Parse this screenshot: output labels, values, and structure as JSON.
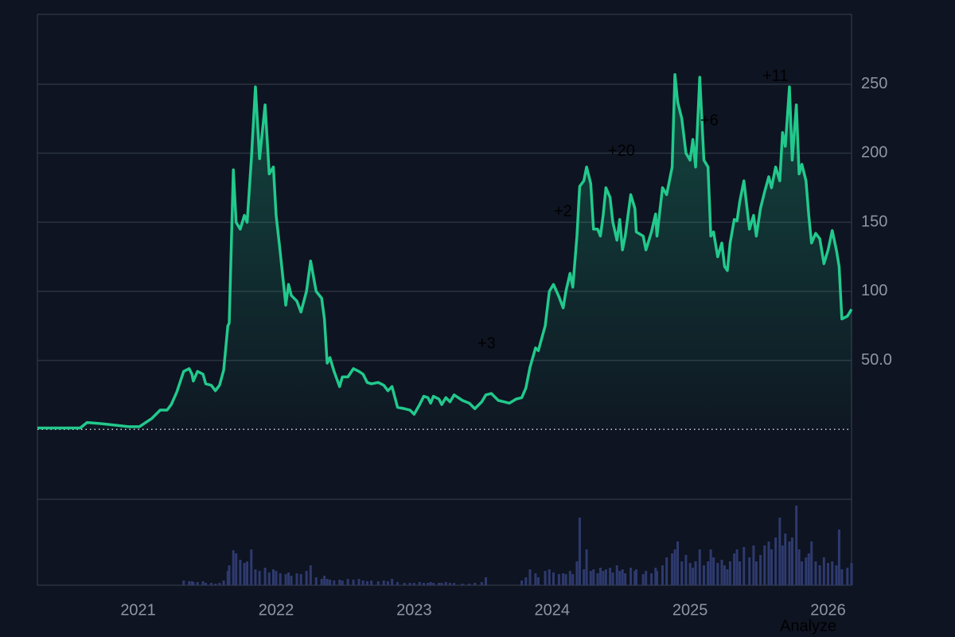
{
  "chart_data": {
    "type": "line",
    "color": "#22c98c",
    "grid": true,
    "xlim": [
      2020.27,
      2026.17
    ],
    "xticks": [
      2021,
      2022,
      2023,
      2024,
      2025,
      2026
    ],
    "ylim": [
      -50,
      300
    ],
    "yticks": [
      {
        "value": 50,
        "label": "50.0"
      },
      100,
      150,
      200,
      250
    ],
    "vlim": [
      0,
      108
    ],
    "volume_color": "#2e3a6e",
    "annotations": [
      "+3",
      "+2",
      "+20",
      "+6",
      "+11"
    ],
    "x": [
      2020.27,
      2020.58,
      2020.63,
      2020.75,
      2020.93,
      2021.01,
      2021.1,
      2021.16,
      2021.21,
      2021.24,
      2021.28,
      2021.33,
      2021.37,
      2021.39,
      2021.4,
      2021.43,
      2021.47,
      2021.49,
      2021.53,
      2021.56,
      2021.59,
      2021.62,
      2021.65,
      2021.66,
      2021.69,
      2021.71,
      2021.74,
      2021.77,
      2021.79,
      2021.82,
      2021.85,
      2021.88,
      2021.92,
      2021.95,
      2021.98,
      2022.0,
      2022.03,
      2022.07,
      2022.09,
      2022.11,
      2022.15,
      2022.18,
      2022.22,
      2022.25,
      2022.29,
      2022.33,
      2022.35,
      2022.37,
      2022.39,
      2022.42,
      2022.46,
      2022.48,
      2022.52,
      2022.56,
      2022.6,
      2022.63,
      2022.66,
      2022.69,
      2022.74,
      2022.78,
      2022.81,
      2022.84,
      2022.88,
      2022.93,
      2022.97,
      2023.0,
      2023.04,
      2023.07,
      2023.1,
      2023.12,
      2023.14,
      2023.18,
      2023.2,
      2023.23,
      2023.26,
      2023.29,
      2023.35,
      2023.4,
      2023.44,
      2023.49,
      2023.52,
      2023.56,
      2023.61,
      2023.65,
      2023.69,
      2023.74,
      2023.78,
      2023.81,
      2023.84,
      2023.88,
      2023.9,
      2023.95,
      2023.98,
      2024.01,
      2024.05,
      2024.08,
      2024.1,
      2024.13,
      2024.15,
      2024.18,
      2024.2,
      2024.23,
      2024.25,
      2024.28,
      2024.3,
      2024.33,
      2024.35,
      2024.37,
      2024.39,
      2024.42,
      2024.44,
      2024.47,
      2024.49,
      2024.51,
      2024.53,
      2024.57,
      2024.6,
      2024.61,
      2024.66,
      2024.68,
      2024.72,
      2024.75,
      2024.76,
      2024.8,
      2024.83,
      2024.87,
      2024.89,
      2024.91,
      2024.94,
      2024.97,
      2025.0,
      2025.02,
      2025.04,
      2025.07,
      2025.1,
      2025.13,
      2025.15,
      2025.17,
      2025.2,
      2025.23,
      2025.25,
      2025.27,
      2025.29,
      2025.32,
      2025.34,
      2025.36,
      2025.39,
      2025.43,
      2025.46,
      2025.48,
      2025.51,
      2025.54,
      2025.57,
      2025.59,
      2025.62,
      2025.65,
      2025.67,
      2025.69,
      2025.72,
      2025.74,
      2025.77,
      2025.79,
      2025.81,
      2025.84,
      2025.86,
      2025.88,
      2025.91,
      2025.94,
      2025.97,
      2026.0,
      2026.03,
      2026.06,
      2026.08,
      2026.1,
      2026.14,
      2026.17
    ],
    "values": [
      1,
      1,
      5,
      4,
      2,
      2,
      8,
      14,
      14,
      18,
      27,
      42,
      44,
      40,
      35,
      42,
      40,
      33,
      32,
      28,
      32,
      43,
      75,
      77,
      188,
      150,
      145,
      155,
      150,
      195,
      248,
      196,
      235,
      185,
      190,
      155,
      128,
      90,
      105,
      97,
      93,
      85,
      100,
      122,
      100,
      95,
      80,
      48,
      52,
      42,
      31,
      38,
      38,
      44,
      42,
      40,
      34,
      33,
      34,
      32,
      28,
      31,
      16,
      15,
      14,
      11,
      18,
      24,
      23,
      19,
      24,
      22,
      18,
      23,
      20,
      25,
      21,
      19,
      15,
      20,
      25,
      26,
      21,
      20,
      19,
      22,
      23,
      30,
      45,
      59,
      57,
      75,
      100,
      105,
      96,
      88,
      100,
      113,
      103,
      140,
      176,
      180,
      190,
      178,
      145,
      145,
      140,
      155,
      175,
      168,
      150,
      137,
      152,
      130,
      140,
      170,
      160,
      143,
      140,
      130,
      143,
      156,
      140,
      175,
      170,
      190,
      257,
      237,
      225,
      200,
      195,
      210,
      190,
      255,
      195,
      190,
      140,
      143,
      125,
      135,
      118,
      115,
      135,
      152,
      151,
      165,
      180,
      145,
      155,
      140,
      160,
      172,
      183,
      175,
      190,
      180,
      215,
      205,
      248,
      195,
      235,
      185,
      192,
      180,
      155,
      135,
      142,
      138,
      120,
      130,
      144,
      130,
      118,
      80,
      82,
      87
    ],
    "volume": [
      0,
      0,
      0,
      0,
      0,
      0,
      0,
      0,
      0,
      0,
      0,
      6,
      5,
      5,
      4,
      4,
      5,
      3,
      3,
      2,
      3,
      6,
      18,
      25,
      44,
      40,
      32,
      28,
      30,
      45,
      20,
      18,
      22,
      16,
      20,
      18,
      15,
      14,
      16,
      12,
      15,
      14,
      18,
      25,
      10,
      8,
      12,
      8,
      7,
      6,
      7,
      6,
      8,
      7,
      8,
      6,
      5,
      6,
      5,
      6,
      5,
      8,
      4,
      3,
      3,
      3,
      4,
      3,
      3,
      4,
      3,
      3,
      3,
      4,
      3,
      3,
      2,
      2,
      3,
      4,
      10,
      0,
      0,
      0,
      0,
      0,
      6,
      10,
      20,
      15,
      10,
      18,
      20,
      16,
      14,
      15,
      14,
      18,
      14,
      30,
      85,
      20,
      45,
      18,
      20,
      15,
      22,
      18,
      20,
      22,
      16,
      25,
      18,
      20,
      15,
      22,
      18,
      20,
      14,
      18,
      15,
      22,
      18,
      25,
      35,
      40,
      45,
      55,
      30,
      38,
      28,
      22,
      30,
      45,
      25,
      30,
      45,
      35,
      28,
      32,
      25,
      20,
      30,
      40,
      45,
      30,
      48,
      35,
      50,
      30,
      38,
      50,
      55,
      45,
      60,
      85,
      50,
      65,
      55,
      60,
      100,
      45,
      30,
      35,
      40,
      55,
      30,
      25,
      35,
      28,
      30,
      25,
      70,
      20,
      22,
      28
    ]
  },
  "controls": {
    "analyze": "Analyze"
  }
}
